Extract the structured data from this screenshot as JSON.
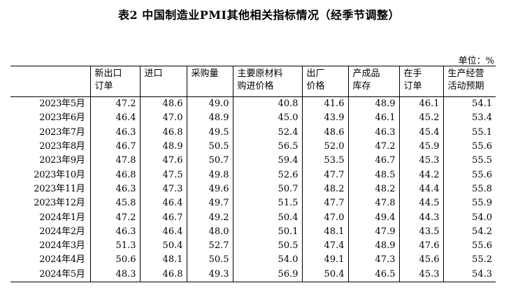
{
  "title": "表2 中国制造业PMI其他相关指标情况（经季节调整）",
  "unit": "单位：%",
  "columns": [
    {
      "line1": "新出口",
      "line2": "订单"
    },
    {
      "line1": "进口",
      "line2": ""
    },
    {
      "line1": "采购量",
      "line2": ""
    },
    {
      "line1": "主要原材料",
      "line2": "购进价格"
    },
    {
      "line1": "出厂",
      "line2": "价格"
    },
    {
      "line1": "产成品",
      "line2": "库存"
    },
    {
      "line1": "在手",
      "line2": "订单"
    },
    {
      "line1": "生产经营",
      "line2": "活动预期"
    }
  ],
  "rows": [
    {
      "month": "2023年5月",
      "values": [
        "47.2",
        "48.6",
        "49.0",
        "40.8",
        "41.6",
        "48.9",
        "46.1",
        "54.1"
      ]
    },
    {
      "month": "2023年6月",
      "values": [
        "46.4",
        "47.0",
        "48.9",
        "45.0",
        "43.9",
        "46.1",
        "45.2",
        "53.4"
      ]
    },
    {
      "month": "2023年7月",
      "values": [
        "46.3",
        "46.8",
        "49.5",
        "52.4",
        "48.6",
        "46.3",
        "45.4",
        "55.1"
      ]
    },
    {
      "month": "2023年8月",
      "values": [
        "46.7",
        "48.9",
        "50.5",
        "56.5",
        "52.0",
        "47.2",
        "45.9",
        "55.6"
      ]
    },
    {
      "month": "2023年9月",
      "values": [
        "47.8",
        "47.6",
        "50.7",
        "59.4",
        "53.5",
        "46.7",
        "45.3",
        "55.5"
      ]
    },
    {
      "month": "2023年10月",
      "values": [
        "46.8",
        "47.5",
        "49.8",
        "52.6",
        "47.7",
        "48.5",
        "44.2",
        "55.6"
      ]
    },
    {
      "month": "2023年11月",
      "values": [
        "46.3",
        "47.3",
        "49.6",
        "50.7",
        "48.2",
        "48.2",
        "44.4",
        "55.8"
      ]
    },
    {
      "month": "2023年12月",
      "values": [
        "45.8",
        "46.4",
        "49.7",
        "51.5",
        "47.7",
        "47.8",
        "44.5",
        "55.9"
      ]
    },
    {
      "month": "2024年1月",
      "values": [
        "47.2",
        "46.7",
        "49.2",
        "50.4",
        "47.0",
        "49.4",
        "44.3",
        "54.0"
      ]
    },
    {
      "month": "2024年2月",
      "values": [
        "46.3",
        "46.4",
        "48.0",
        "50.1",
        "48.1",
        "47.9",
        "43.5",
        "54.2"
      ]
    },
    {
      "month": "2024年3月",
      "values": [
        "51.3",
        "50.4",
        "52.7",
        "50.5",
        "47.4",
        "48.9",
        "47.6",
        "55.6"
      ]
    },
    {
      "month": "2024年4月",
      "values": [
        "50.6",
        "48.1",
        "50.5",
        "54.0",
        "49.1",
        "47.3",
        "45.6",
        "55.2"
      ]
    },
    {
      "month": "2024年5月",
      "values": [
        "48.3",
        "46.8",
        "49.3",
        "56.9",
        "50.4",
        "46.5",
        "45.3",
        "54.3"
      ]
    }
  ]
}
